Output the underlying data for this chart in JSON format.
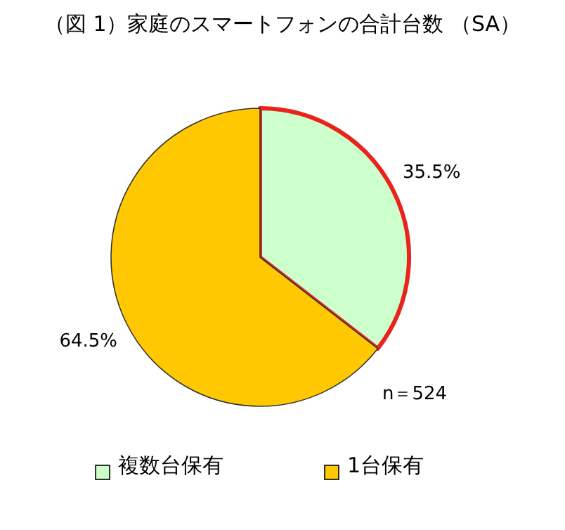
{
  "chart_data": {
    "type": "pie",
    "title": "（図 1）家庭のスマートフォンの合計台数 （SA）",
    "categories": [
      "複数台保有",
      "1台保有"
    ],
    "values": [
      35.5,
      64.5
    ],
    "colors": [
      "#ccffcc",
      "#ffc800"
    ],
    "value_labels": [
      "35.5%",
      "64.5%"
    ],
    "annotations": [
      "n＝524"
    ],
    "legend": "bottom"
  }
}
